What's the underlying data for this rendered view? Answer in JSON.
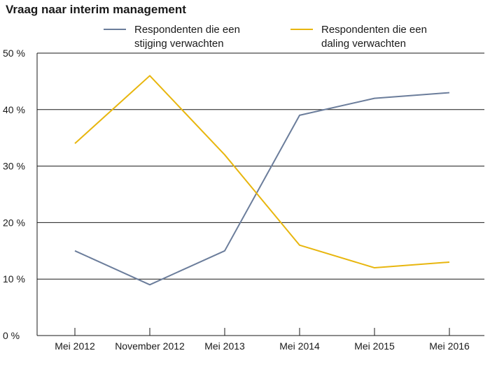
{
  "chart_data": {
    "type": "line",
    "title": "Vraag naar interim management",
    "categories": [
      "Mei 2012",
      "November 2012",
      "Mei 2013",
      "Mei 2014",
      "Mei 2015",
      "Mei 2016"
    ],
    "y_ticks": [
      "0 %",
      "10 %",
      "20 %",
      "30 %",
      "40 %",
      "50 %"
    ],
    "ylim": [
      0,
      50
    ],
    "grid": true,
    "legend_position": "top",
    "series": [
      {
        "name_lines": [
          "Respondenten die een",
          "stijging verwachten"
        ],
        "color": "#6b7d9b",
        "values": [
          15,
          9,
          15,
          39,
          42,
          43
        ]
      },
      {
        "name_lines": [
          "Respondenten die een",
          "daling verwachten"
        ],
        "color": "#e8b60e",
        "values": [
          34,
          46,
          32,
          16,
          12,
          13
        ]
      }
    ]
  }
}
